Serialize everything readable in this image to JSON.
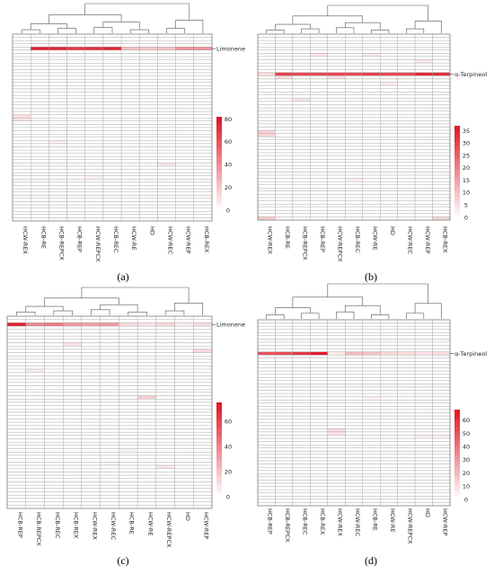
{
  "chart_data": [
    {
      "type": "heatmap",
      "panel_label": "(a)",
      "columns": [
        "HCW-REX",
        "HCB-RE",
        "HCB-REPCX",
        "HCB-REP",
        "HCW-REPCX",
        "HCB-REC",
        "HCW-RE",
        "HD",
        "HCW-REC",
        "HCW-REP",
        "HCB-REX"
      ],
      "n_rows": 58,
      "highlight": {
        "label": "Limonene",
        "row": 4,
        "values": [
          3,
          78,
          76,
          70,
          72,
          76,
          22,
          20,
          22,
          38,
          38
        ]
      },
      "minor_cells": [
        [
          25,
          0,
          12
        ],
        [
          26,
          0,
          10
        ],
        [
          40,
          8,
          8
        ],
        [
          44,
          4,
          6
        ],
        [
          33,
          2,
          5
        ]
      ],
      "colorbar": {
        "ticks": [
          0,
          20,
          40,
          60,
          80
        ],
        "min": 0,
        "max": 82
      },
      "dendrogram": [
        [
          0,
          1,
          1.0
        ],
        [
          2,
          4,
          0.35
        ],
        [
          5,
          6,
          0.2
        ],
        [
          3,
          5,
          0.25
        ],
        [
          3,
          6,
          0.4
        ],
        [
          1,
          7,
          0.55
        ],
        [
          9,
          10,
          0.2
        ],
        [
          11,
          8,
          0.4
        ],
        [
          12,
          9,
          0.6
        ],
        [
          12,
          7,
          0.85
        ],
        [
          13,
          0,
          1.0
        ]
      ]
    },
    {
      "type": "heatmap",
      "panel_label": "(b)",
      "columns": [
        "HCW-REX",
        "HCB-RE",
        "HCB-REPCX",
        "HCB-REP",
        "HCW-REPCX",
        "HCB-REC",
        "HCW-RE",
        "HD",
        "HCW-REC",
        "HCW-REP",
        "HCB-REX"
      ],
      "n_rows": 58,
      "highlight": {
        "label": "α-Terpineol",
        "row": 12,
        "values": [
          6,
          30,
          29,
          29,
          29,
          29,
          30,
          29,
          29,
          34,
          33
        ]
      },
      "minor_cells": [
        [
          30,
          0,
          7
        ],
        [
          31,
          0,
          7
        ],
        [
          6,
          3,
          4
        ],
        [
          6,
          6,
          4
        ],
        [
          13,
          1,
          5
        ],
        [
          13,
          4,
          5
        ],
        [
          20,
          2,
          4
        ],
        [
          45,
          5,
          3
        ],
        [
          8,
          9,
          4
        ],
        [
          15,
          7,
          3
        ],
        [
          57,
          0,
          8
        ],
        [
          57,
          10,
          6
        ]
      ],
      "colorbar": {
        "ticks": [
          0,
          5,
          10,
          15,
          20,
          25,
          30,
          35
        ],
        "min": 0,
        "max": 37
      },
      "dendrogram": []
    },
    {
      "type": "heatmap",
      "panel_label": "(c)",
      "columns": [
        "HCB-REP",
        "HCB-REPCX",
        "HCB-REC",
        "HCB-REX",
        "HCW-REX",
        "HCW-REC",
        "HCB-RE",
        "HCW-RE",
        "HCW-REPCX",
        "HD",
        "HCW-REP"
      ],
      "n_rows": 58,
      "highlight": {
        "label": "Limonene",
        "row": 2,
        "values": [
          72,
          38,
          42,
          32,
          30,
          32,
          10,
          8,
          12,
          4,
          10
        ]
      },
      "minor_cells": [
        [
          8,
          3,
          10
        ],
        [
          10,
          10,
          12
        ],
        [
          24,
          7,
          16
        ],
        [
          16,
          1,
          6
        ],
        [
          44,
          5,
          5
        ],
        [
          45,
          8,
          8
        ],
        [
          40,
          6,
          4
        ]
      ],
      "colorbar": {
        "ticks": [
          0,
          20,
          40,
          60
        ],
        "min": 0,
        "max": 75
      },
      "dendrogram": []
    },
    {
      "type": "heatmap",
      "panel_label": "(d)",
      "columns": [
        "HCB-REP",
        "HCB-REPCX",
        "HCB-REC",
        "HCB-REX",
        "HCW-REX",
        "HCW-REC",
        "HCB-RE",
        "HCW-RE",
        "HCW-REPCX",
        "HD",
        "HCW-REP"
      ],
      "n_rows": 58,
      "highlight": {
        "label": "α-Terpineol",
        "row": 10,
        "values": [
          50,
          52,
          58,
          66,
          6,
          20,
          18,
          12,
          10,
          8,
          10
        ]
      },
      "minor_cells": [
        [
          34,
          4,
          10
        ],
        [
          35,
          4,
          8
        ],
        [
          24,
          6,
          4
        ],
        [
          36,
          9,
          4
        ],
        [
          36,
          10,
          4
        ]
      ],
      "colorbar": {
        "ticks": [
          0,
          10,
          20,
          30,
          40,
          50,
          60
        ],
        "min": 0,
        "max": 68
      },
      "dendrogram": []
    }
  ]
}
